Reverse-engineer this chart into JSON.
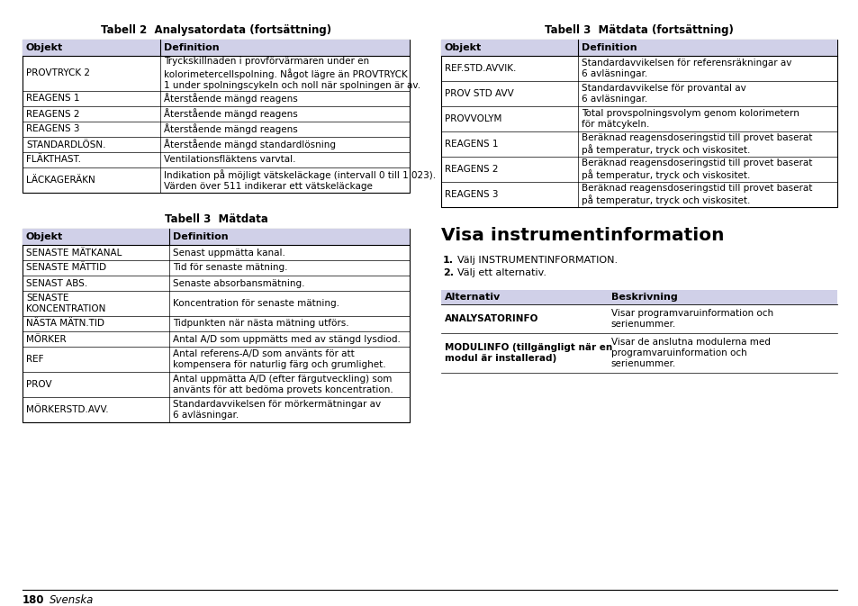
{
  "bg_color": "#ffffff",
  "header_bg": "#d0d0e8",
  "table_border": "#000000",
  "text_color": "#000000",
  "table1_title": "Tabell 2  Analysatordata (fortsättning)",
  "table1_headers": [
    "Objekt",
    "Definition"
  ],
  "table1_rows": [
    [
      "PROVTRYCK 2",
      "Tryckskillnaden i provförvärmaren under en\nkolorimetercellspolning. Något lägre än PROVTRYCK\n1 under spolningscykeln och noll när spolningen är av."
    ],
    [
      "REAGENS 1",
      "Återstående mängd reagens"
    ],
    [
      "REAGENS 2",
      "Återstående mängd reagens"
    ],
    [
      "REAGENS 3",
      "Återstående mängd reagens"
    ],
    [
      "STANDARDLÖSN.",
      "Återstående mängd standardlösning"
    ],
    [
      "FLÄKTHAST.",
      "Ventilationsfläktens varvtal."
    ],
    [
      "LÄCKAGERÄKN",
      "Indikation på möjligt vätskeläckage (intervall 0 till 1 023).\nVärden över 511 indikerar ett vätskeläckage"
    ]
  ],
  "table2_title": "Tabell 3  Mätdata",
  "table2_headers": [
    "Objekt",
    "Definition"
  ],
  "table2_rows": [
    [
      "SENASTE MÄTKANAL",
      "Senast uppmätta kanal."
    ],
    [
      "SENASTE MÄTTID",
      "Tid för senaste mätning."
    ],
    [
      "SENAST ABS.",
      "Senaste absorbansmätning."
    ],
    [
      "SENASTE\nKONCENTRATION",
      "Koncentration för senaste mätning."
    ],
    [
      "NÄSTA MÄTN.TID",
      "Tidpunkten när nästa mätning utförs."
    ],
    [
      "MÖRKER",
      "Antal A/D som uppmätts med av stängd lysdiod."
    ],
    [
      "REF",
      "Antal referens-A/D som använts för att\nkompensera för naturlig färg och grumlighet."
    ],
    [
      "PROV",
      "Antal uppmätta A/D (efter färgutveckling) som\nanvänts för att bedöma provets koncentration."
    ],
    [
      "MÖRKERSTD.AVV.",
      "Standardavvikelsen för mörkermätningar av\n6 avläsningar."
    ]
  ],
  "table3_title": "Tabell 3  Mätdata (fortsättning)",
  "table3_headers": [
    "Objekt",
    "Definition"
  ],
  "table3_rows": [
    [
      "REF.STD.AVVIK.",
      "Standardavvikelsen för referensräkningar av\n6 avläsningar."
    ],
    [
      "PROV STD AVV",
      "Standardavvikelse för provantal av\n6 avläsningar."
    ],
    [
      "PROVVOLYM",
      "Total provspolningsvolym genom kolorimetern\nför mätcykeln."
    ],
    [
      "REAGENS 1",
      "Beräknad reagensdoseringstid till provet baserat\npå temperatur, tryck och viskositet."
    ],
    [
      "REAGENS 2",
      "Beräknad reagensdoseringstid till provet baserat\npå temperatur, tryck och viskositet."
    ],
    [
      "REAGENS 3",
      "Beräknad reagensdoseringstid till provet baserat\npå temperatur, tryck och viskositet."
    ]
  ],
  "section_title": "Visa instrumentinformation",
  "steps": [
    "Välj INSTRUMENTINFORMATION.",
    "Välj ett alternativ."
  ],
  "info_table_headers": [
    "Alternativ",
    "Beskrivning"
  ],
  "info_table_rows": [
    [
      "ANALYSATORINFO",
      "Visar programvaruinformation och\nserienummer."
    ],
    [
      "MODULINFO (tillgängligt när en\nmodul är installerad)",
      "Visar de anslutna modulerna med\nprogramvaruinformation och\nserienummer."
    ]
  ],
  "footer_page": "180",
  "footer_text": "Svenska"
}
